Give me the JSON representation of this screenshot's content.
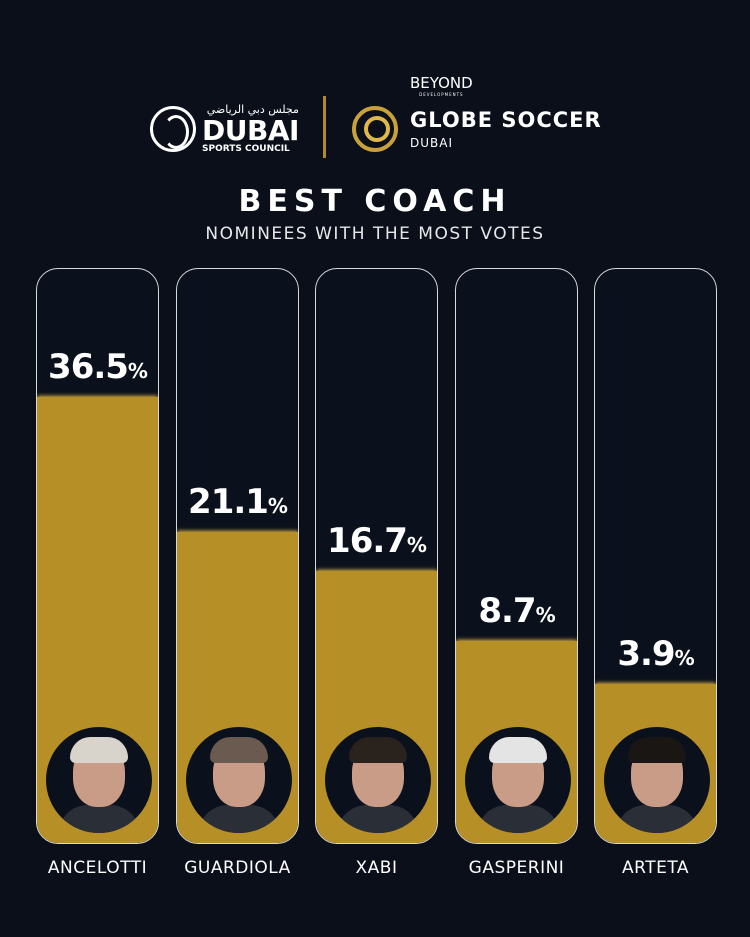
{
  "logos": {
    "dsc_arabic": "مجلس دبي الرياضي",
    "dsc_main": "DUBAI",
    "dsc_sub": "SPORTS COUNCIL",
    "beyond": "BEYOND",
    "beyond_sub": "DEVELOPMENTS",
    "gs_title": "GLOBE SOCCER",
    "gs_sub": "DUBAI"
  },
  "chart_data": {
    "type": "bar",
    "title": "BEST COACH",
    "subtitle": "NOMINEES WITH THE MOST VOTES",
    "categories": [
      "ANCELOTTI",
      "GUARDIOLA",
      "XABI",
      "GASPERINI",
      "ARTETA"
    ],
    "values": [
      36.5,
      21.1,
      16.7,
      8.7,
      3.9
    ],
    "value_labels": [
      "36.5",
      "21.1",
      "16.7",
      "8.7",
      "3.9"
    ],
    "unit": "%",
    "bar_color": "#b68f26",
    "background": "#0a0f1a",
    "hair_colors": [
      "#d8d4cc",
      "#6a5a50",
      "#2a221c",
      "#e4e4e4",
      "#1a1614"
    ]
  }
}
